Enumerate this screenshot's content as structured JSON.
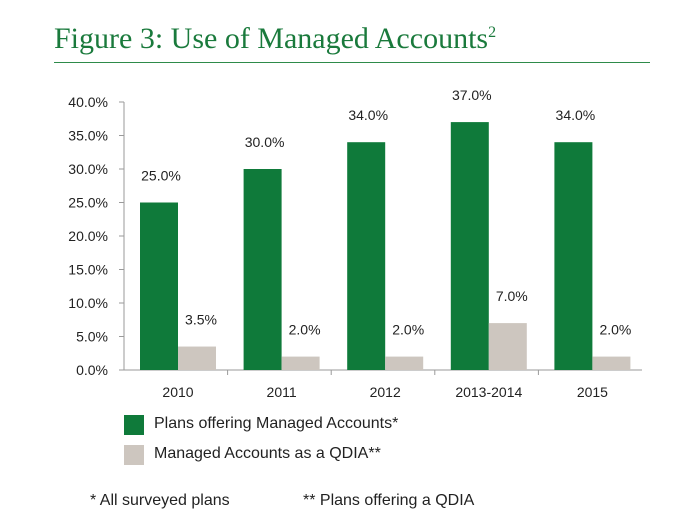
{
  "title": "Figure 3: Use of Managed Accounts",
  "title_sup": "2",
  "colors": {
    "series1": "#0f7a3a",
    "series2": "#cdc6bf",
    "accent": "#1a7a3c"
  },
  "chart_data": {
    "type": "bar",
    "categories": [
      "2010",
      "2011",
      "2012",
      "2013-2014",
      "2015"
    ],
    "series": [
      {
        "name": "Plans offering Managed Accounts*",
        "values": [
          25.0,
          30.0,
          34.0,
          37.0,
          34.0
        ],
        "labels": [
          "25.0%",
          "30.0%",
          "34.0%",
          "37.0%",
          "34.0%"
        ]
      },
      {
        "name": "Managed Accounts as a QDIA**",
        "values": [
          3.5,
          2.0,
          2.0,
          7.0,
          2.0
        ],
        "labels": [
          "3.5%",
          "2.0%",
          "2.0%",
          "7.0%",
          "2.0%"
        ]
      }
    ],
    "yticks": [
      "0.0%",
      "5.0%",
      "10.0%",
      "15.0%",
      "20.0%",
      "25.0%",
      "30.0%",
      "35.0%",
      "40.0%"
    ],
    "ylim": [
      0,
      40
    ],
    "legend_position": "bottom",
    "grid": false
  },
  "footnotes": [
    "* All surveyed plans",
    "** Plans offering a QDIA"
  ]
}
